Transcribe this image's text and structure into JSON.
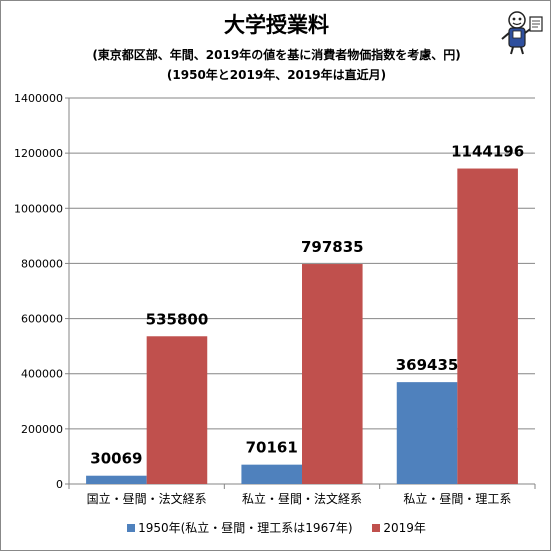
{
  "chart_data": {
    "type": "bar",
    "title": "大学授業料",
    "subtitle_lines": [
      "(東京都区部、年間、2019年の値を基に消費者物価指数を考慮、円)",
      "(1950年と2019年、2019年は直近月)"
    ],
    "categories": [
      "国立・昼間・法文経系",
      "私立・昼間・法文経系",
      "私立・昼間・理工系"
    ],
    "series": [
      {
        "name": "1950年(私立・昼間・理工系は1967年)",
        "color": "#4f81bd",
        "values": [
          30069,
          70161,
          369435
        ]
      },
      {
        "name": "2019年",
        "color": "#c0504d",
        "values": [
          535800,
          797835,
          1144196
        ]
      }
    ],
    "ylim": [
      0,
      1400000
    ],
    "yticks": [
      0,
      200000,
      400000,
      600000,
      800000,
      1000000,
      1200000,
      1400000
    ],
    "grid": true,
    "legend_position": "bottom",
    "data_labels": true
  },
  "mascot_icon": "cartoon-mascot-icon"
}
